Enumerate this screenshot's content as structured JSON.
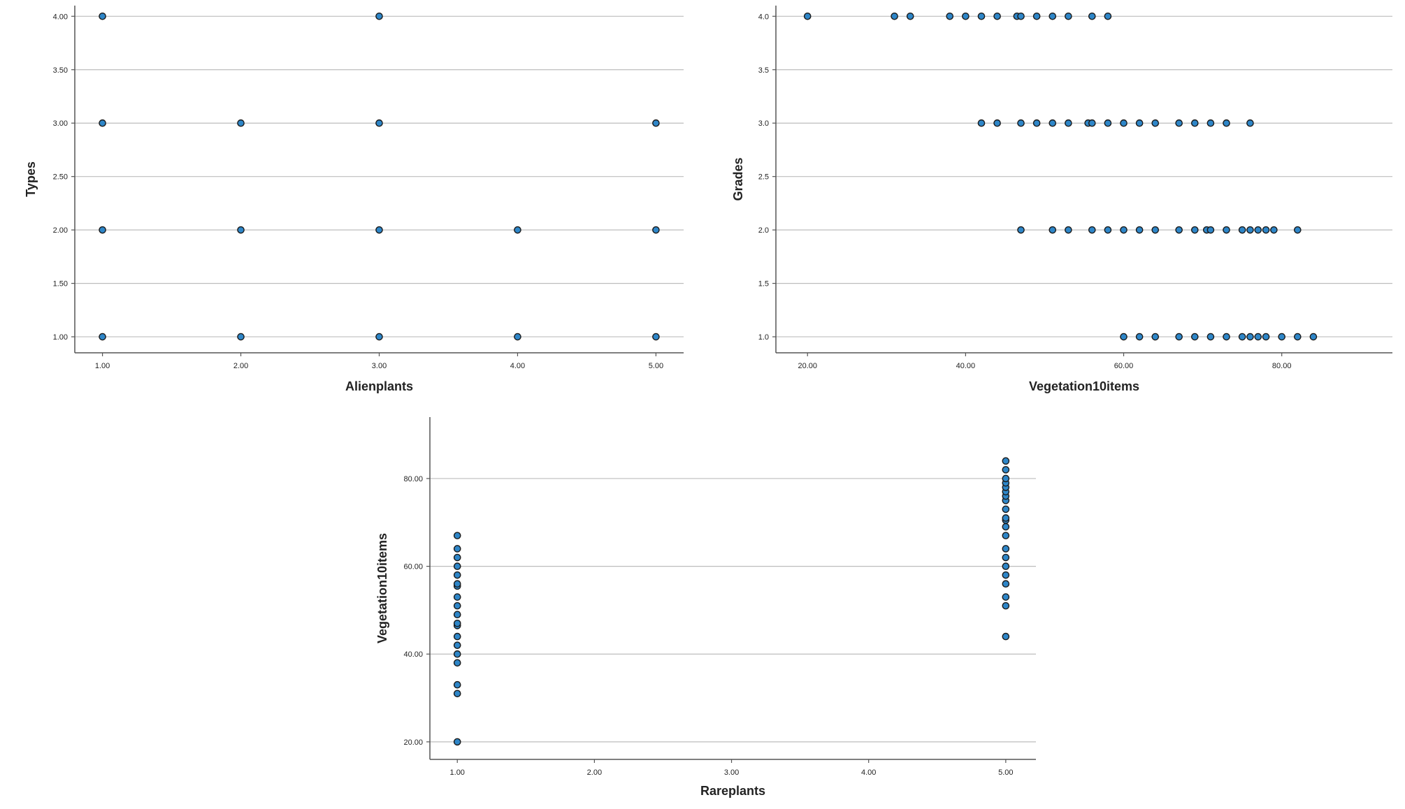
{
  "chart_data": [
    {
      "type": "scatter",
      "xlabel": "Alienplants",
      "ylabel": "Types",
      "xlim": [
        0.8,
        5.2
      ],
      "ylim": [
        0.85,
        4.1
      ],
      "xticks": [
        1,
        2,
        3,
        4,
        5
      ],
      "yticks": [
        1,
        1.5,
        2,
        2.5,
        3,
        3.5,
        4
      ],
      "xtick_labels": [
        "1.00",
        "2.00",
        "3.00",
        "4.00",
        "5.00"
      ],
      "ytick_labels": [
        "1.00",
        "1.50",
        "2.00",
        "2.50",
        "3.00",
        "3.50",
        "4.00"
      ],
      "grid": "horizontal",
      "marker_color": "#2e86c8",
      "points": [
        {
          "x": 1,
          "y": 4
        },
        {
          "x": 3,
          "y": 4
        },
        {
          "x": 1,
          "y": 3
        },
        {
          "x": 2,
          "y": 3
        },
        {
          "x": 3,
          "y": 3
        },
        {
          "x": 5,
          "y": 3
        },
        {
          "x": 1,
          "y": 2
        },
        {
          "x": 2,
          "y": 2
        },
        {
          "x": 3,
          "y": 2
        },
        {
          "x": 4,
          "y": 2
        },
        {
          "x": 5,
          "y": 2
        },
        {
          "x": 1,
          "y": 1
        },
        {
          "x": 2,
          "y": 1
        },
        {
          "x": 3,
          "y": 1
        },
        {
          "x": 4,
          "y": 1
        },
        {
          "x": 5,
          "y": 1
        }
      ]
    },
    {
      "type": "scatter",
      "xlabel": "Vegetation10items",
      "ylabel": "Grades",
      "xlim": [
        16,
        94
      ],
      "ylim": [
        0.85,
        4.1
      ],
      "xticks": [
        20,
        40,
        60,
        80
      ],
      "yticks": [
        1,
        1.5,
        2,
        2.5,
        3,
        3.5,
        4
      ],
      "xtick_labels": [
        "20.00",
        "40.00",
        "60.00",
        "80.00"
      ],
      "ytick_labels": [
        "1.0",
        "1.5",
        "2.0",
        "2.5",
        "3.0",
        "3.5",
        "4.0"
      ],
      "grid": "horizontal",
      "marker_color": "#2e86c8",
      "points": [
        {
          "x": 20,
          "y": 4
        },
        {
          "x": 31,
          "y": 4
        },
        {
          "x": 33,
          "y": 4
        },
        {
          "x": 38,
          "y": 4
        },
        {
          "x": 40,
          "y": 4
        },
        {
          "x": 42,
          "y": 4
        },
        {
          "x": 44,
          "y": 4
        },
        {
          "x": 46.5,
          "y": 4
        },
        {
          "x": 47,
          "y": 4
        },
        {
          "x": 49,
          "y": 4
        },
        {
          "x": 51,
          "y": 4
        },
        {
          "x": 53,
          "y": 4
        },
        {
          "x": 56,
          "y": 4
        },
        {
          "x": 58,
          "y": 4
        },
        {
          "x": 42,
          "y": 3
        },
        {
          "x": 44,
          "y": 3
        },
        {
          "x": 47,
          "y": 3
        },
        {
          "x": 49,
          "y": 3
        },
        {
          "x": 51,
          "y": 3
        },
        {
          "x": 53,
          "y": 3
        },
        {
          "x": 55.5,
          "y": 3
        },
        {
          "x": 56,
          "y": 3
        },
        {
          "x": 58,
          "y": 3
        },
        {
          "x": 60,
          "y": 3
        },
        {
          "x": 62,
          "y": 3
        },
        {
          "x": 64,
          "y": 3
        },
        {
          "x": 67,
          "y": 3
        },
        {
          "x": 69,
          "y": 3
        },
        {
          "x": 71,
          "y": 3
        },
        {
          "x": 73,
          "y": 3
        },
        {
          "x": 76,
          "y": 3
        },
        {
          "x": 47,
          "y": 2
        },
        {
          "x": 51,
          "y": 2
        },
        {
          "x": 53,
          "y": 2
        },
        {
          "x": 56,
          "y": 2
        },
        {
          "x": 58,
          "y": 2
        },
        {
          "x": 60,
          "y": 2
        },
        {
          "x": 62,
          "y": 2
        },
        {
          "x": 64,
          "y": 2
        },
        {
          "x": 67,
          "y": 2
        },
        {
          "x": 69,
          "y": 2
        },
        {
          "x": 70.5,
          "y": 2
        },
        {
          "x": 71,
          "y": 2
        },
        {
          "x": 73,
          "y": 2
        },
        {
          "x": 75,
          "y": 2
        },
        {
          "x": 76,
          "y": 2
        },
        {
          "x": 77,
          "y": 2
        },
        {
          "x": 78,
          "y": 2
        },
        {
          "x": 79,
          "y": 2
        },
        {
          "x": 82,
          "y": 2
        },
        {
          "x": 60,
          "y": 1
        },
        {
          "x": 62,
          "y": 1
        },
        {
          "x": 64,
          "y": 1
        },
        {
          "x": 67,
          "y": 1
        },
        {
          "x": 69,
          "y": 1
        },
        {
          "x": 71,
          "y": 1
        },
        {
          "x": 73,
          "y": 1
        },
        {
          "x": 75,
          "y": 1
        },
        {
          "x": 76,
          "y": 1
        },
        {
          "x": 77,
          "y": 1
        },
        {
          "x": 78,
          "y": 1
        },
        {
          "x": 80,
          "y": 1
        },
        {
          "x": 82,
          "y": 1
        },
        {
          "x": 84,
          "y": 1
        }
      ]
    },
    {
      "type": "scatter",
      "xlabel": "Rareplants",
      "ylabel": "Vegetation10items",
      "xlim": [
        0.8,
        5.22
      ],
      "ylim": [
        16,
        94
      ],
      "xticks": [
        1,
        2,
        3,
        4,
        5
      ],
      "yticks": [
        20,
        40,
        60,
        80
      ],
      "xtick_labels": [
        "1.00",
        "2.00",
        "3.00",
        "4.00",
        "5.00"
      ],
      "ytick_labels": [
        "20.00",
        "40.00",
        "60.00",
        "80.00"
      ],
      "grid": "horizontal",
      "marker_color": "#2e86c8",
      "points": [
        {
          "x": 1,
          "y": 20
        },
        {
          "x": 1,
          "y": 31
        },
        {
          "x": 1,
          "y": 33
        },
        {
          "x": 1,
          "y": 38
        },
        {
          "x": 1,
          "y": 40
        },
        {
          "x": 1,
          "y": 42
        },
        {
          "x": 1,
          "y": 44
        },
        {
          "x": 1,
          "y": 46.5
        },
        {
          "x": 1,
          "y": 47
        },
        {
          "x": 1,
          "y": 49
        },
        {
          "x": 1,
          "y": 51
        },
        {
          "x": 1,
          "y": 53
        },
        {
          "x": 1,
          "y": 55.5
        },
        {
          "x": 1,
          "y": 56
        },
        {
          "x": 1,
          "y": 58
        },
        {
          "x": 1,
          "y": 60
        },
        {
          "x": 1,
          "y": 62
        },
        {
          "x": 1,
          "y": 64
        },
        {
          "x": 1,
          "y": 67
        },
        {
          "x": 5,
          "y": 44
        },
        {
          "x": 5,
          "y": 51
        },
        {
          "x": 5,
          "y": 53
        },
        {
          "x": 5,
          "y": 56
        },
        {
          "x": 5,
          "y": 58
        },
        {
          "x": 5,
          "y": 60
        },
        {
          "x": 5,
          "y": 62
        },
        {
          "x": 5,
          "y": 64
        },
        {
          "x": 5,
          "y": 67
        },
        {
          "x": 5,
          "y": 69
        },
        {
          "x": 5,
          "y": 70.5
        },
        {
          "x": 5,
          "y": 71
        },
        {
          "x": 5,
          "y": 73
        },
        {
          "x": 5,
          "y": 75
        },
        {
          "x": 5,
          "y": 76
        },
        {
          "x": 5,
          "y": 77
        },
        {
          "x": 5,
          "y": 78
        },
        {
          "x": 5,
          "y": 79
        },
        {
          "x": 5,
          "y": 80
        },
        {
          "x": 5,
          "y": 82
        },
        {
          "x": 5,
          "y": 84
        }
      ]
    }
  ]
}
